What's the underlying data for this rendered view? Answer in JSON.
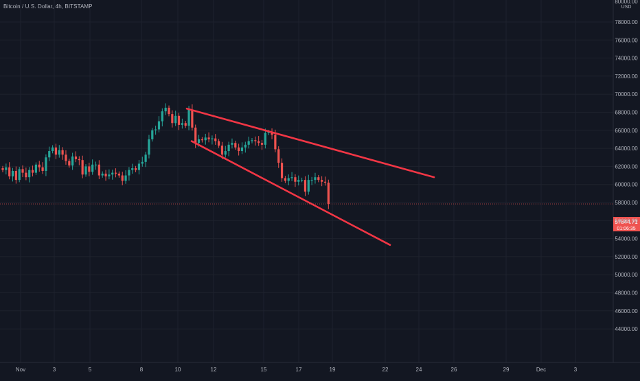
{
  "title": "Bitcoin / U.S. Dollar, 4h, BITSTAMP",
  "colors": {
    "background": "#131722",
    "grid": "#1e222d",
    "axis_text": "#b2b5be",
    "up": "#26a69a",
    "down": "#ef5350",
    "trendline": "#f23645",
    "price_line": "#ef5350",
    "price_label_bg": "#ef5350"
  },
  "price_axis": {
    "currency": "USD",
    "tick_labels": [
      "80000.00",
      "78000.00",
      "76000.00",
      "74000.00",
      "72000.00",
      "70000.00",
      "68000.00",
      "66000.00",
      "64000.00",
      "62000.00",
      "60000.00",
      "58000.00",
      "56000.00",
      "54000.00",
      "52000.00",
      "50000.00",
      "48000.00",
      "46000.00",
      "44000.00"
    ],
    "current_price": "57844.71",
    "countdown": "01:06:35"
  },
  "time_axis": {
    "tick_labels": [
      "Nov",
      "3",
      "5",
      "8",
      "10",
      "12",
      "15",
      "17",
      "19",
      "22",
      "24",
      "26",
      "29",
      "Dec",
      "3"
    ]
  },
  "chart_data": {
    "type": "candlestick",
    "title": "Bitcoin / U.S. Dollar, 4h, BITSTAMP",
    "xlabel": "",
    "ylabel": "",
    "ylim": [
      43000,
      80000
    ],
    "grid": true,
    "x_ticks": [
      "Nov",
      "3",
      "5",
      "8",
      "10",
      "12",
      "15",
      "17",
      "19",
      "22",
      "24",
      "26",
      "29",
      "Dec",
      "3"
    ],
    "candles_close": [
      61600,
      61900,
      60900,
      61500,
      60500,
      61700,
      61300,
      60800,
      61600,
      61300,
      62200,
      61900,
      61500,
      63000,
      63700,
      64100,
      63300,
      63800,
      63300,
      62600,
      62100,
      63100,
      62800,
      62700,
      61100,
      62000,
      61400,
      62200,
      62200,
      61000,
      61200,
      60900,
      61100,
      61300,
      61200,
      61000,
      60400,
      61000,
      61600,
      61800,
      61600,
      62300,
      62500,
      63300,
      65000,
      66000,
      66100,
      67000,
      68100,
      68500,
      67800,
      66800,
      67600,
      66600,
      66800,
      66500,
      68300,
      66300,
      64600,
      65000,
      64900,
      65200,
      65000,
      65100,
      64800,
      64300,
      63300,
      63700,
      64400,
      64600,
      64100,
      63700,
      64100,
      64400,
      64800,
      64900,
      64800,
      64600,
      64400,
      65700,
      65800,
      65500,
      63900,
      62400,
      60700,
      60400,
      60700,
      60800,
      60300,
      60500,
      60500,
      59200,
      60500,
      60500,
      60800,
      60500,
      60300,
      60200,
      57844.71
    ],
    "trendlines": [
      {
        "from": {
          "date": "Nov 10",
          "price": 68400
        },
        "to": {
          "date": "Nov 25",
          "price": 60800
        }
      },
      {
        "from": {
          "date": "Nov 10",
          "price": 64800
        },
        "to": {
          "date": "Nov 22",
          "price": 53300
        }
      }
    ],
    "last_price": 57844.71
  }
}
